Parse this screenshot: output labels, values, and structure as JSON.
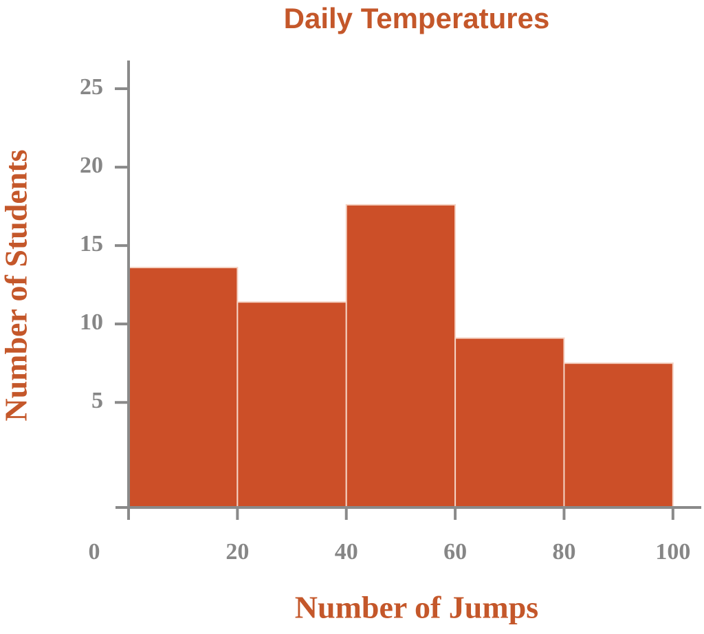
{
  "chart_data": {
    "type": "histogram",
    "title": "Daily Temperatures",
    "x_label": "Number of Jumps",
    "y_label": "Number of Students",
    "bins": [
      0,
      20,
      40,
      60,
      80,
      100
    ],
    "counts": [
      13.6,
      11.4,
      17.6,
      9.1,
      7.5
    ],
    "color": "#cc4f28",
    "edge_color": "#f5d3c4",
    "xlim": [
      -2.4,
      105.2
    ],
    "ylim": [
      -1.7,
      26.8
    ],
    "xticks": [
      0,
      20,
      40,
      60,
      80,
      100
    ],
    "yticks": [
      5,
      10,
      15,
      20,
      25
    ]
  }
}
